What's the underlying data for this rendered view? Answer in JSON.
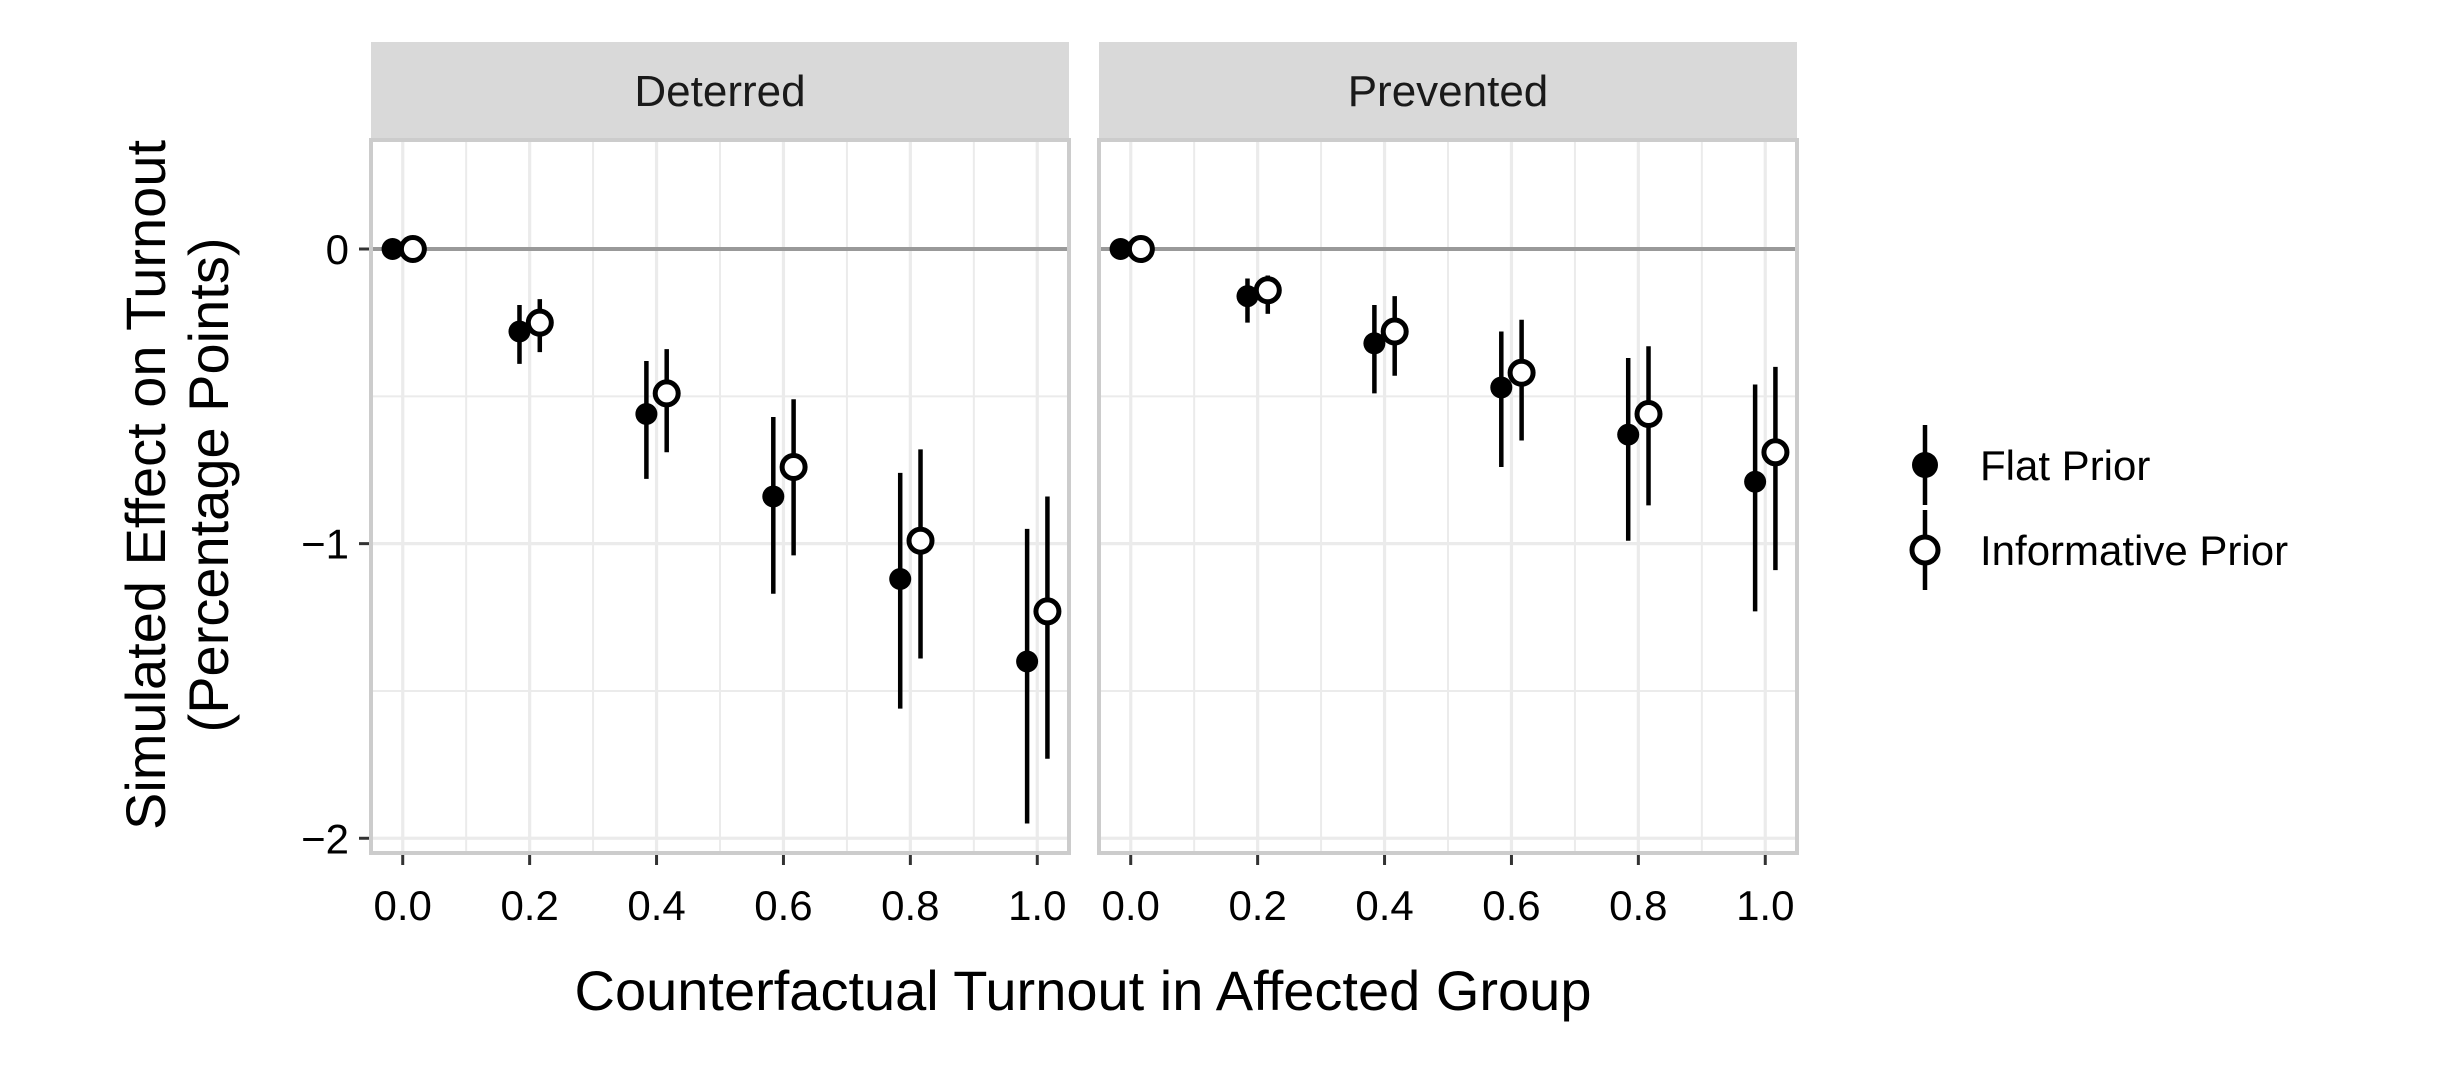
{
  "chart_data": {
    "type": "scatter",
    "subtype": "faceted point-range (estimate with interval)",
    "xlabel": "Counterfactual Turnout in Affected Group",
    "ylabel": [
      "Simulated Effect on Turnout",
      "(Percentage Points)"
    ],
    "x_ticks": [
      "0.0",
      "0.2",
      "0.4",
      "0.6",
      "0.8",
      "1.0"
    ],
    "y_ticks": [
      "0",
      "−1",
      "−2"
    ],
    "xlim": [
      -0.05,
      1.05
    ],
    "ylim": [
      -2.05,
      0.37
    ],
    "x_minor_grid": [
      0.1,
      0.3,
      0.5,
      0.7,
      0.9
    ],
    "y_minor_grid": [
      -0.5,
      -1.5
    ],
    "reference_line_y": 0,
    "grid": true,
    "legend_position": "right",
    "legend": [
      {
        "name": "Flat Prior",
        "marker": "filled-circle"
      },
      {
        "name": "Informative Prior",
        "marker": "open-circle"
      }
    ],
    "colors": {
      "points": "#000000",
      "strip_background": "#d9d9d9",
      "panel_border": "#cccccc",
      "grid": "#ebebeb",
      "reference_line": "#999999"
    },
    "facets": [
      {
        "label": "Deterred",
        "series": [
          {
            "name": "Flat Prior",
            "points": [
              {
                "x": 0.0,
                "y": 0.0,
                "low": 0.0,
                "high": 0.0
              },
              {
                "x": 0.2,
                "y": -0.28,
                "low": -0.39,
                "high": -0.19
              },
              {
                "x": 0.4,
                "y": -0.56,
                "low": -0.78,
                "high": -0.38
              },
              {
                "x": 0.6,
                "y": -0.84,
                "low": -1.17,
                "high": -0.57
              },
              {
                "x": 0.8,
                "y": -1.12,
                "low": -1.56,
                "high": -0.76
              },
              {
                "x": 1.0,
                "y": -1.4,
                "low": -1.95,
                "high": -0.95
              }
            ]
          },
          {
            "name": "Informative Prior",
            "points": [
              {
                "x": 0.0,
                "y": 0.0,
                "low": 0.0,
                "high": 0.0
              },
              {
                "x": 0.2,
                "y": -0.25,
                "low": -0.35,
                "high": -0.17
              },
              {
                "x": 0.4,
                "y": -0.49,
                "low": -0.69,
                "high": -0.34
              },
              {
                "x": 0.6,
                "y": -0.74,
                "low": -1.04,
                "high": -0.51
              },
              {
                "x": 0.8,
                "y": -0.99,
                "low": -1.39,
                "high": -0.68
              },
              {
                "x": 1.0,
                "y": -1.23,
                "low": -1.73,
                "high": -0.84
              }
            ]
          }
        ]
      },
      {
        "label": "Prevented",
        "series": [
          {
            "name": "Flat Prior",
            "points": [
              {
                "x": 0.0,
                "y": 0.0,
                "low": 0.0,
                "high": 0.0
              },
              {
                "x": 0.2,
                "y": -0.16,
                "low": -0.25,
                "high": -0.1
              },
              {
                "x": 0.4,
                "y": -0.32,
                "low": -0.49,
                "high": -0.19
              },
              {
                "x": 0.6,
                "y": -0.47,
                "low": -0.74,
                "high": -0.28
              },
              {
                "x": 0.8,
                "y": -0.63,
                "low": -0.99,
                "high": -0.37
              },
              {
                "x": 1.0,
                "y": -0.79,
                "low": -1.23,
                "high": -0.46
              }
            ]
          },
          {
            "name": "Informative Prior",
            "points": [
              {
                "x": 0.0,
                "y": 0.0,
                "low": 0.0,
                "high": 0.0
              },
              {
                "x": 0.2,
                "y": -0.14,
                "low": -0.22,
                "high": -0.09
              },
              {
                "x": 0.4,
                "y": -0.28,
                "low": -0.43,
                "high": -0.16
              },
              {
                "x": 0.6,
                "y": -0.42,
                "low": -0.65,
                "high": -0.24
              },
              {
                "x": 0.8,
                "y": -0.56,
                "low": -0.87,
                "high": -0.33
              },
              {
                "x": 1.0,
                "y": -0.69,
                "low": -1.09,
                "high": -0.4
              }
            ]
          }
        ]
      }
    ]
  }
}
